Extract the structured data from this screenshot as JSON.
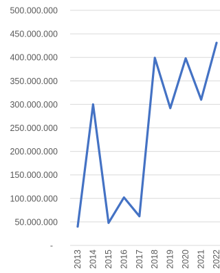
{
  "chart_data": {
    "type": "line",
    "title": "",
    "xlabel": "",
    "ylabel": "",
    "x": [
      "2013",
      "2014",
      "2015",
      "2016",
      "2017",
      "2018",
      "2019",
      "2020",
      "2021",
      "2022"
    ],
    "series": [
      {
        "values": [
          40000000,
          300000000,
          48000000,
          102000000,
          62000000,
          399000000,
          292000000,
          398000000,
          310000000,
          431000000
        ],
        "color": "#4472c4"
      }
    ],
    "ylim": [
      0,
      500000000
    ],
    "yticks": [
      0,
      50000000,
      100000000,
      150000000,
      200000000,
      250000000,
      300000000,
      350000000,
      400000000,
      450000000,
      500000000
    ],
    "ytick_labels": [
      "-",
      "50.000.000",
      "100.000.000",
      "150.000.000",
      "200.000.000",
      "250.000.000",
      "300.000.000",
      "350.000.000",
      "400.000.000",
      "450.000.000",
      "500.000.000"
    ],
    "grid": true,
    "legend": "none"
  }
}
